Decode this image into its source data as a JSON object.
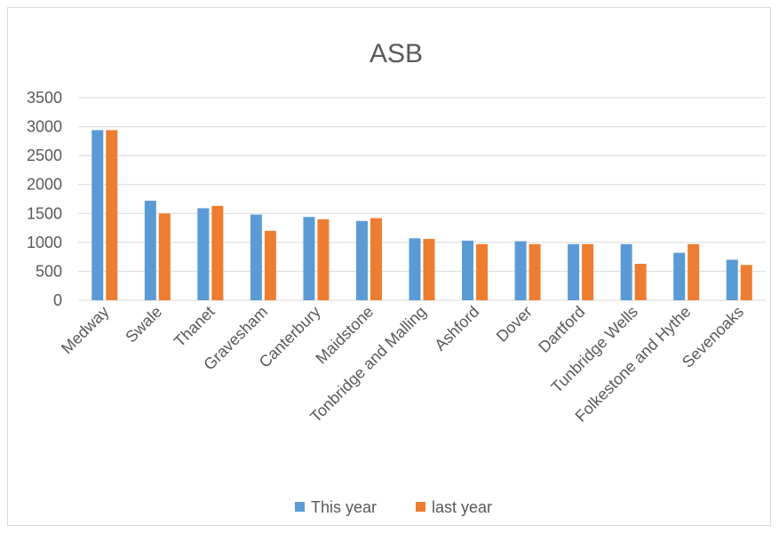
{
  "chart_data": {
    "type": "bar",
    "title": "ASB",
    "categories": [
      "Medway",
      "Swale",
      "Thanet",
      "Gravesham",
      "Canterbury",
      "Maidstone",
      "Tonbridge and Malling",
      "Ashford",
      "Dover",
      "Dartford",
      "Tunbridge Wells",
      "Folkestone and Hythe",
      "Sevenoaks"
    ],
    "series": [
      {
        "name": "This year",
        "color": "#5b9bd5",
        "values": [
          2940,
          1720,
          1590,
          1480,
          1440,
          1370,
          1070,
          1030,
          1020,
          970,
          970,
          820,
          700
        ]
      },
      {
        "name": "last year",
        "color": "#ed7d31",
        "values": [
          2940,
          1500,
          1630,
          1200,
          1400,
          1420,
          1060,
          970,
          970,
          970,
          630,
          970,
          610
        ]
      }
    ],
    "ylim": [
      0,
      3500
    ],
    "yticks": [
      0,
      500,
      1000,
      1500,
      2000,
      2500,
      3000,
      3500
    ],
    "grid": true,
    "legend": "bottom",
    "xlabel": "",
    "ylabel": ""
  }
}
